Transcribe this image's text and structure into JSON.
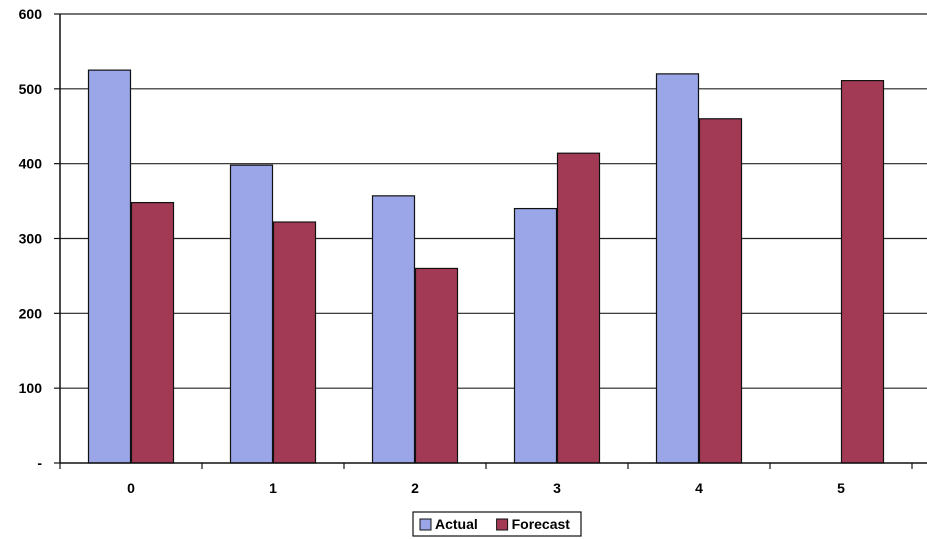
{
  "chart_data": {
    "type": "bar",
    "categories": [
      "0",
      "1",
      "2",
      "3",
      "4",
      "5"
    ],
    "series": [
      {
        "name": "Actual",
        "color": "#9aa6e8",
        "values": [
          525,
          398,
          357,
          340,
          520,
          null
        ]
      },
      {
        "name": "Forecast",
        "color": "#a33a55",
        "values": [
          348,
          322,
          260,
          414,
          460,
          511
        ]
      }
    ],
    "y_ticks": [
      {
        "value": 0,
        "label": "-"
      },
      {
        "value": 100,
        "label": "100"
      },
      {
        "value": 200,
        "label": "200"
      },
      {
        "value": 300,
        "label": "300"
      },
      {
        "value": 400,
        "label": "400"
      },
      {
        "value": 500,
        "label": "500"
      },
      {
        "value": 600,
        "label": "600"
      }
    ],
    "ylim": [
      0,
      600
    ],
    "grid": true,
    "legend_position": "bottom-center",
    "title": "",
    "xlabel": "",
    "ylabel": ""
  }
}
